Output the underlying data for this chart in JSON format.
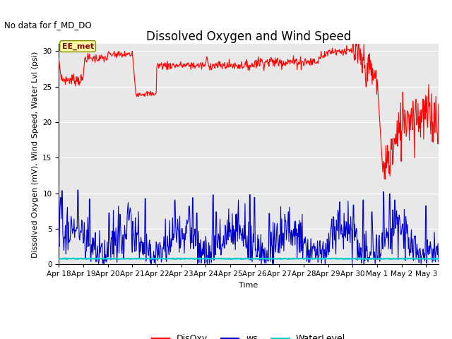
{
  "title": "Dissolved Oxygen and Wind Speed",
  "subtitle": "No data for f_MD_DO",
  "xlabel": "Time",
  "ylabel": "Dissolved Oxygen (mV), Wind Speed, Water Lvl (psi)",
  "ylim": [
    0,
    31
  ],
  "yticks": [
    0,
    5,
    10,
    15,
    20,
    25,
    30
  ],
  "annotation_text": "EE_met",
  "legend_labels": [
    "DisOxy",
    "ws",
    "WaterLevel"
  ],
  "legend_colors": [
    "#ff0000",
    "#0000cc",
    "#00cccc"
  ],
  "disoxy_color": "#ff0000",
  "ws_color": "#0000cc",
  "water_color": "#00cccc",
  "plot_bg_color": "#e8e8e8",
  "water_level_value": 0.8,
  "title_fontsize": 12,
  "label_fontsize": 8,
  "tick_fontsize": 7.5
}
